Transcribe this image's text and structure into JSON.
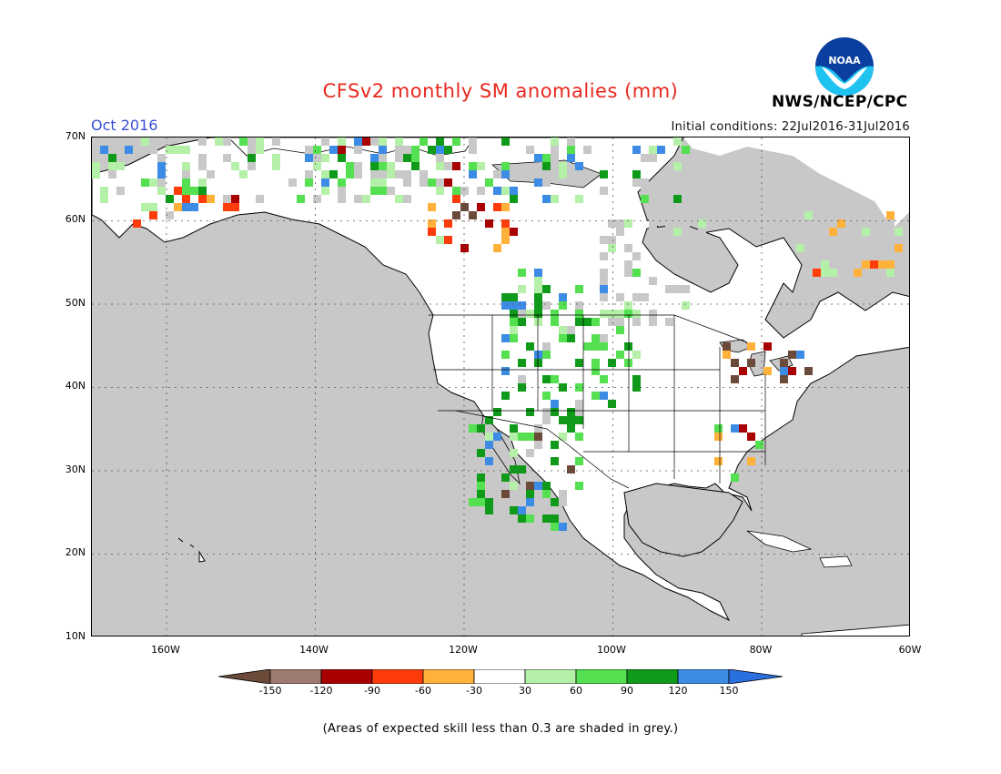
{
  "header": {
    "title": "CFSv2 monthly SM anomalies (mm)",
    "period": "Oct 2016",
    "initial_conditions": "Initial conditions: 22Jul2016-31Jul2016",
    "organization": "NWS/NCEP/CPC",
    "logo_text": "NOAA"
  },
  "map": {
    "lat_labels": [
      "70N",
      "60N",
      "50N",
      "40N",
      "30N",
      "20N",
      "10N"
    ],
    "lon_labels": [
      "160W",
      "140W",
      "120W",
      "100W",
      "80W",
      "60W"
    ],
    "colors": {
      "skill_mask_grey": "#c8c8c8",
      "coastline": "#000000",
      "background": "#ffffff"
    }
  },
  "colorbar": {
    "labels": [
      "-150",
      "-120",
      "-90",
      "-60",
      "-30",
      "30",
      "60",
      "90",
      "120",
      "150"
    ],
    "colors": [
      "#6b4a3a",
      "#9e7b70",
      "#a80000",
      "#ff3c0a",
      "#ffb13a",
      "#ffffff",
      "#b4f0a8",
      "#54e050",
      "#0f9a1a",
      "#3c8ce6",
      "#2a6fe0"
    ]
  },
  "footnote": "(Areas of expected skill less than 0.3 are shaded in grey.)"
}
